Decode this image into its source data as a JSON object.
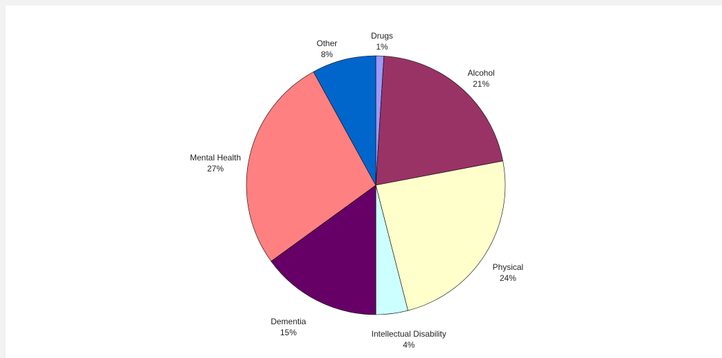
{
  "chart_data": {
    "type": "pie",
    "slices": [
      {
        "label": "Drugs",
        "pct_label": "1%",
        "value": 1,
        "color": "#9999ff"
      },
      {
        "label": "Alcohol",
        "pct_label": "21%",
        "value": 21,
        "color": "#993366"
      },
      {
        "label": "Physical",
        "pct_label": "24%",
        "value": 24,
        "color": "#ffffcc"
      },
      {
        "label": "Intellectual Disability",
        "pct_label": "4%",
        "value": 4,
        "color": "#ccffff"
      },
      {
        "label": "Dementia",
        "pct_label": "15%",
        "value": 15,
        "color": "#660066"
      },
      {
        "label": "Mental Health",
        "pct_label": "27%",
        "value": 27,
        "color": "#ff8080"
      },
      {
        "label": "Other",
        "pct_label": "8%",
        "value": 8,
        "color": "#0066cc"
      }
    ],
    "start": "12 o'clock",
    "direction": "clockwise",
    "legend": "none"
  }
}
